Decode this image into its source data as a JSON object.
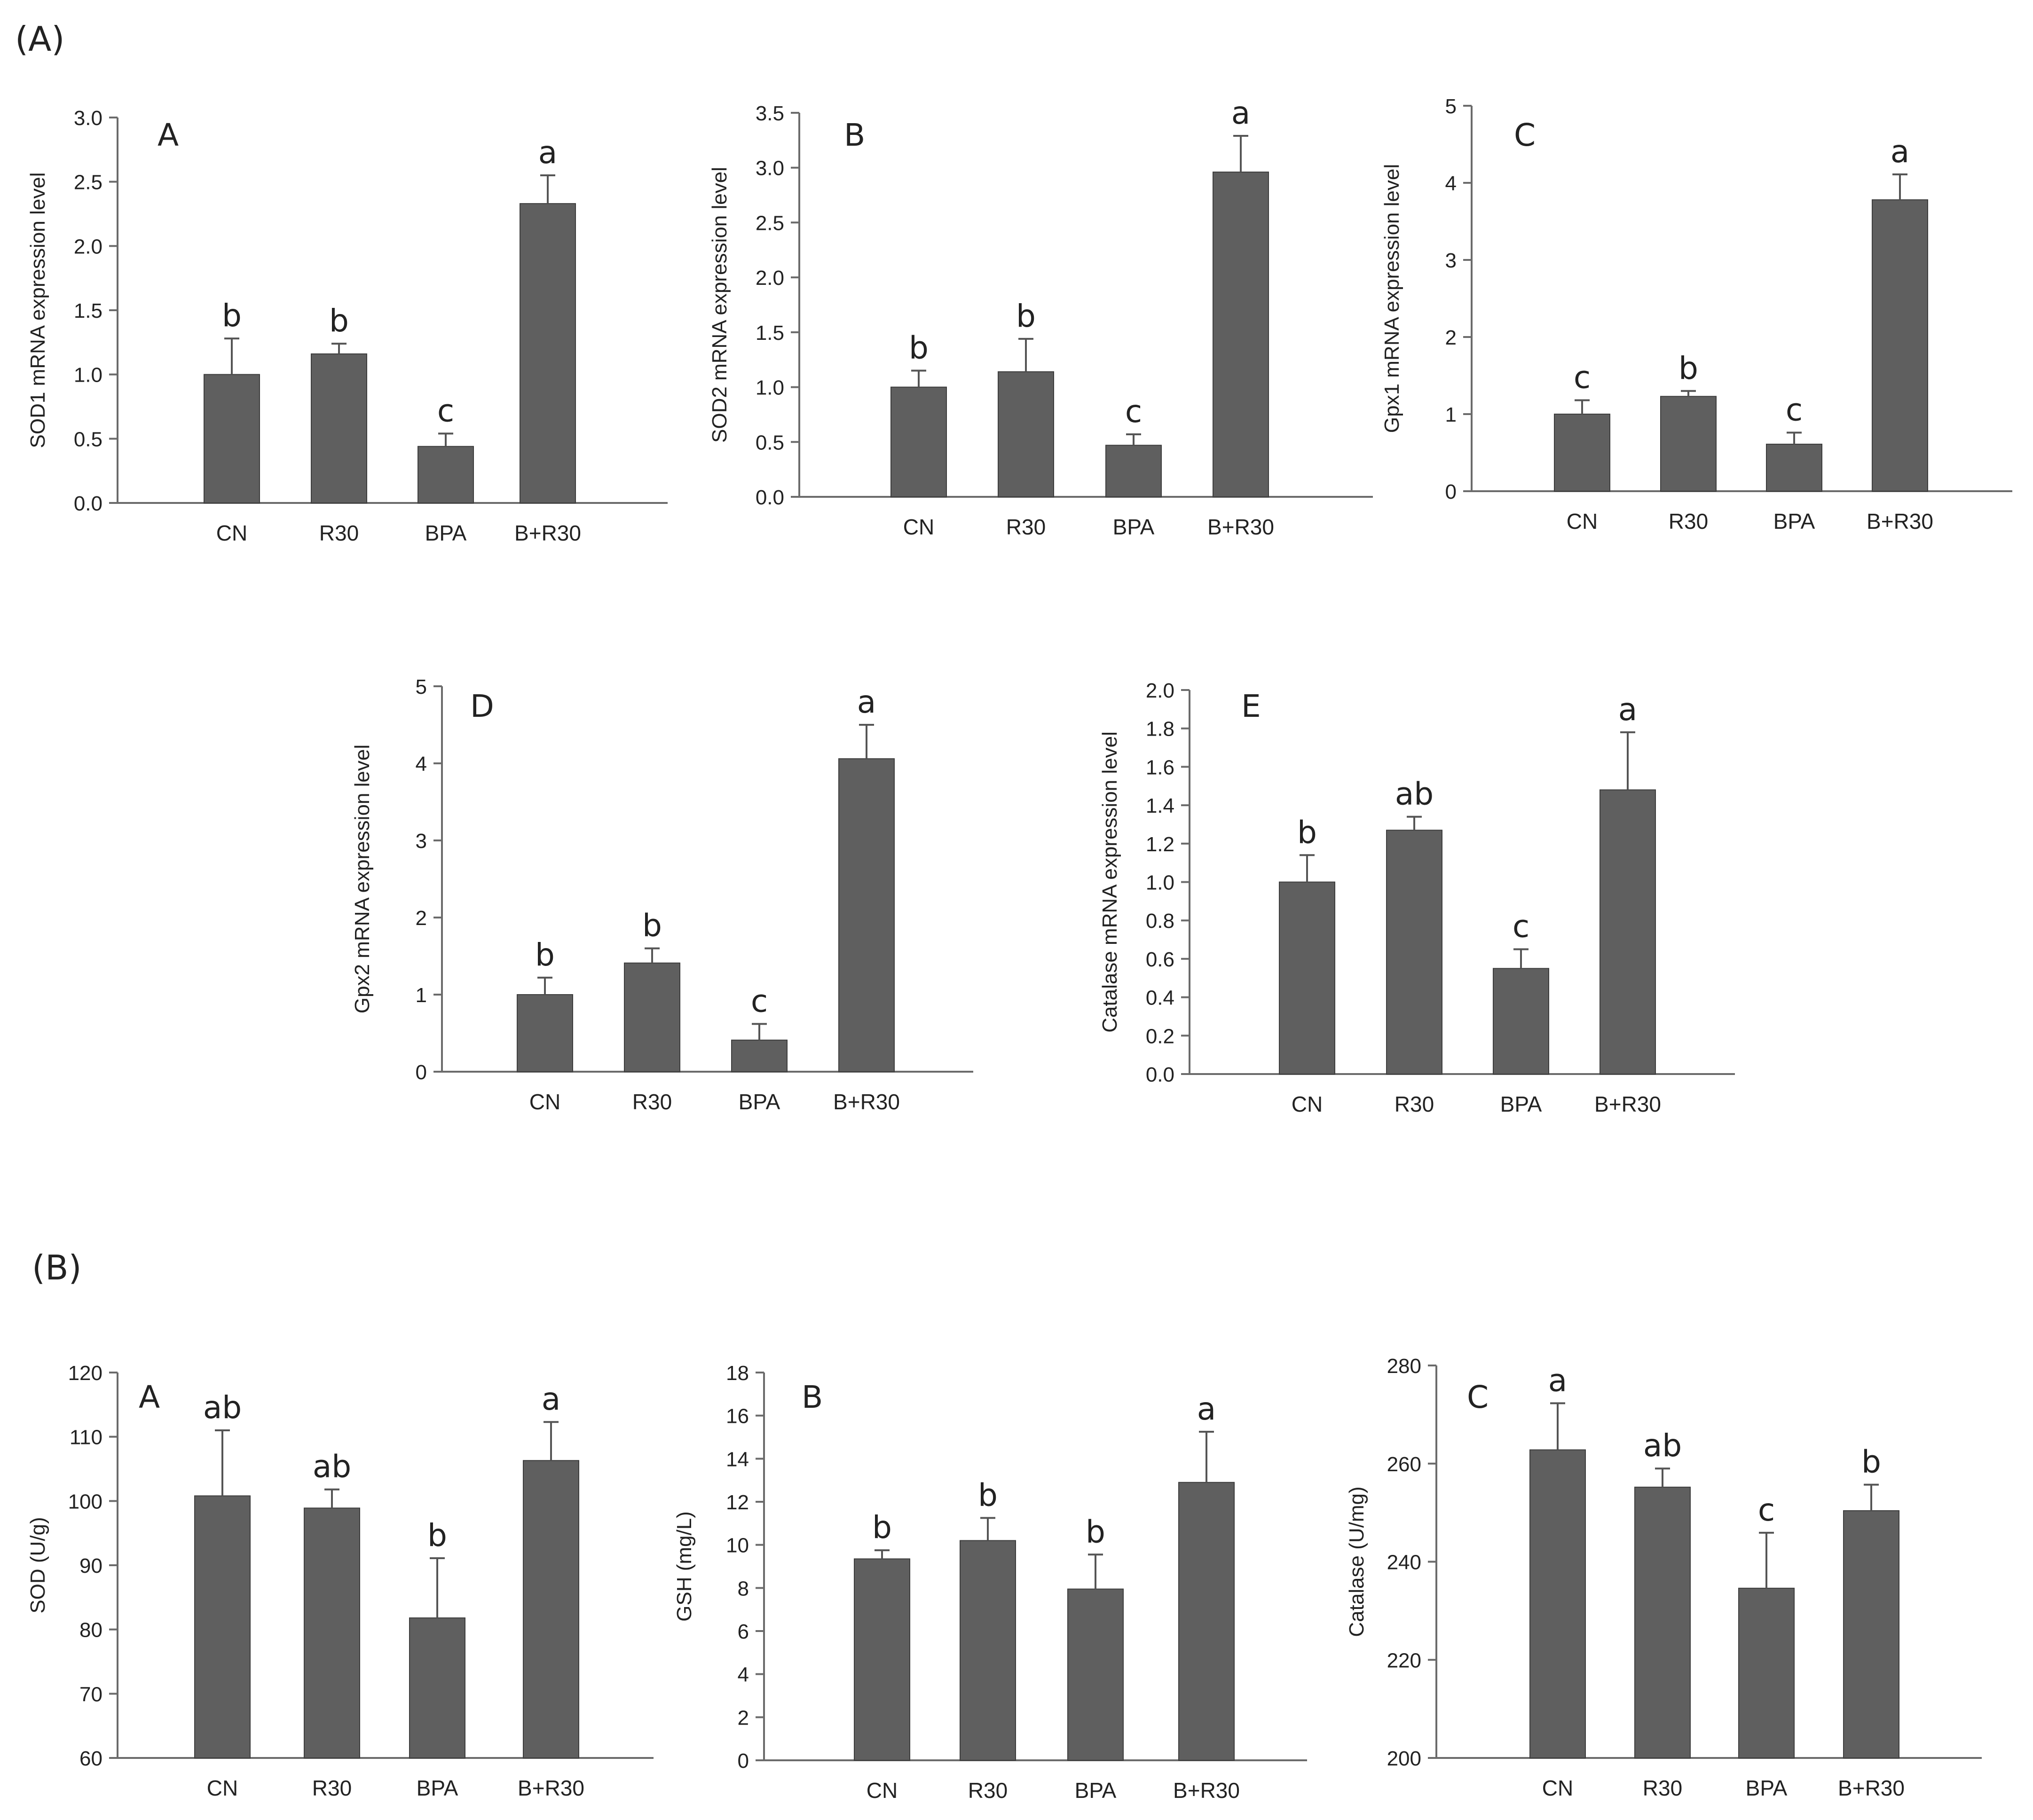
{
  "section_labels": [
    "(A)",
    "(B)"
  ],
  "style": {
    "bar_color": "#5f5f5f",
    "axis_color": "#6b6b6b",
    "text_color": "#222222"
  },
  "chart_data": [
    {
      "type": "bar",
      "section": "(A)",
      "panel": "A",
      "categories": [
        "CN",
        "R30",
        "BPA",
        "B+R30"
      ],
      "values": [
        1.0,
        1.16,
        0.44,
        2.33
      ],
      "errors": [
        0.28,
        0.08,
        0.1,
        0.22
      ],
      "significance": [
        "b",
        "b",
        "c",
        "a"
      ],
      "ylabel": "SOD1 mRNA expression level",
      "ylim": [
        0,
        3.0
      ],
      "yticks": [
        "0.0",
        "0.5",
        "1.0",
        "1.5",
        "2.0",
        "2.5",
        "3.0"
      ]
    },
    {
      "type": "bar",
      "section": "(A)",
      "panel": "B",
      "categories": [
        "CN",
        "R30",
        "BPA",
        "B+R30"
      ],
      "values": [
        1.0,
        1.14,
        0.47,
        2.96
      ],
      "errors": [
        0.15,
        0.3,
        0.1,
        0.33
      ],
      "significance": [
        "b",
        "b",
        "c",
        "a"
      ],
      "ylabel": "SOD2 mRNA expression level",
      "ylim": [
        0,
        3.5
      ],
      "yticks": [
        "0.0",
        "0.5",
        "1.0",
        "1.5",
        "2.0",
        "2.5",
        "3.0",
        "3.5"
      ]
    },
    {
      "type": "bar",
      "section": "(A)",
      "panel": "C",
      "categories": [
        "CN",
        "R30",
        "BPA",
        "B+R30"
      ],
      "values": [
        1.0,
        1.23,
        0.61,
        3.78
      ],
      "errors": [
        0.18,
        0.07,
        0.15,
        0.33
      ],
      "significance": [
        "c",
        "b",
        "c",
        "a"
      ],
      "ylabel": "Gpx1 mRNA expression level",
      "ylim": [
        0,
        5
      ],
      "yticks": [
        "0",
        "1",
        "2",
        "3",
        "4",
        "5"
      ]
    },
    {
      "type": "bar",
      "section": "(A)",
      "panel": "D",
      "categories": [
        "CN",
        "R30",
        "BPA",
        "B+R30"
      ],
      "values": [
        1.0,
        1.41,
        0.41,
        4.06
      ],
      "errors": [
        0.22,
        0.19,
        0.21,
        0.44
      ],
      "significance": [
        "b",
        "b",
        "c",
        "a"
      ],
      "ylabel": "Gpx2 mRNA expression level",
      "ylim": [
        0,
        5
      ],
      "yticks": [
        "0",
        "1",
        "2",
        "3",
        "4",
        "5"
      ]
    },
    {
      "type": "bar",
      "section": "(A)",
      "panel": "E",
      "categories": [
        "CN",
        "R30",
        "BPA",
        "B+R30"
      ],
      "values": [
        1.0,
        1.27,
        0.55,
        1.48
      ],
      "errors": [
        0.14,
        0.07,
        0.1,
        0.3
      ],
      "significance": [
        "b",
        "ab",
        "c",
        "a"
      ],
      "ylabel": "Catalase mRNA expression level",
      "ylim": [
        0,
        2.0
      ],
      "yticks": [
        "0.0",
        "0.2",
        "0.4",
        "0.6",
        "0.8",
        "1.0",
        "1.2",
        "1.4",
        "1.6",
        "1.8",
        "2.0"
      ]
    },
    {
      "type": "bar",
      "section": "(B)",
      "panel": "A",
      "categories": [
        "CN",
        "R30",
        "BPA",
        "B+R30"
      ],
      "values": [
        100.8,
        98.9,
        81.8,
        106.3
      ],
      "errors": [
        10.2,
        2.9,
        9.3,
        6.0
      ],
      "significance": [
        "ab",
        "ab",
        "b",
        "a"
      ],
      "ylabel": "SOD (U/g)",
      "ylim": [
        60,
        120
      ],
      "yticks": [
        "60",
        "70",
        "80",
        "90",
        "100",
        "110",
        "120"
      ]
    },
    {
      "type": "bar",
      "section": "(B)",
      "panel": "B",
      "categories": [
        "CN",
        "R30",
        "BPA",
        "B+R30"
      ],
      "values": [
        9.35,
        10.2,
        7.95,
        12.9
      ],
      "errors": [
        0.4,
        1.05,
        1.6,
        2.35
      ],
      "significance": [
        "b",
        "b",
        "b",
        "a"
      ],
      "ylabel": "GSH (mg/L)",
      "ylim": [
        0,
        18
      ],
      "yticks": [
        "0",
        "2",
        "4",
        "6",
        "8",
        "10",
        "12",
        "14",
        "16",
        "18"
      ]
    },
    {
      "type": "bar",
      "section": "(B)",
      "panel": "C",
      "categories": [
        "CN",
        "R30",
        "BPA",
        "B+R30"
      ],
      "values": [
        262.8,
        255.2,
        234.6,
        250.4
      ],
      "errors": [
        9.5,
        3.8,
        11.3,
        5.3
      ],
      "significance": [
        "a",
        "ab",
        "c",
        "b"
      ],
      "ylabel": "Catalase (U/mg)",
      "ylim": [
        200,
        280
      ],
      "yticks": [
        "200",
        "220",
        "240",
        "260",
        "280"
      ]
    }
  ]
}
